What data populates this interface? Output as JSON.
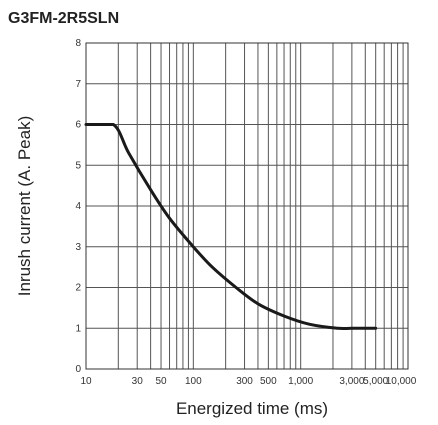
{
  "chart_data": {
    "type": "line",
    "title": "G3FM-2R5SLN",
    "xlabel": "Energized time (ms)",
    "ylabel": "Inrush current (A. Peak)",
    "x_scale": "log",
    "xlim": [
      10,
      10000
    ],
    "ylim": [
      0,
      8
    ],
    "grid": true,
    "x_ticks": [
      {
        "value": 10,
        "label": "10"
      },
      {
        "value": 30,
        "label": "30"
      },
      {
        "value": 50,
        "label": "50"
      },
      {
        "value": 100,
        "label": "100"
      },
      {
        "value": 300,
        "label": "300"
      },
      {
        "value": 500,
        "label": "500"
      },
      {
        "value": 1000,
        "label": "1,000"
      },
      {
        "value": 3000,
        "label": "3,000"
      },
      {
        "value": 5000,
        "label": "5,000"
      },
      {
        "value": 10000,
        "label": "10,000"
      }
    ],
    "y_ticks": [
      0,
      1,
      2,
      3,
      4,
      5,
      6,
      7,
      8
    ],
    "series": [
      {
        "color": "#1a1a1a",
        "x": [
          10,
          18,
          25,
          40,
          60,
          100,
          150,
          250,
          400,
          700,
          1200,
          2200,
          3000,
          5000
        ],
        "y": [
          6,
          6,
          5.3,
          4.4,
          3.7,
          3.0,
          2.5,
          2.0,
          1.6,
          1.3,
          1.1,
          1.0,
          1.0,
          1.0
        ]
      }
    ]
  }
}
